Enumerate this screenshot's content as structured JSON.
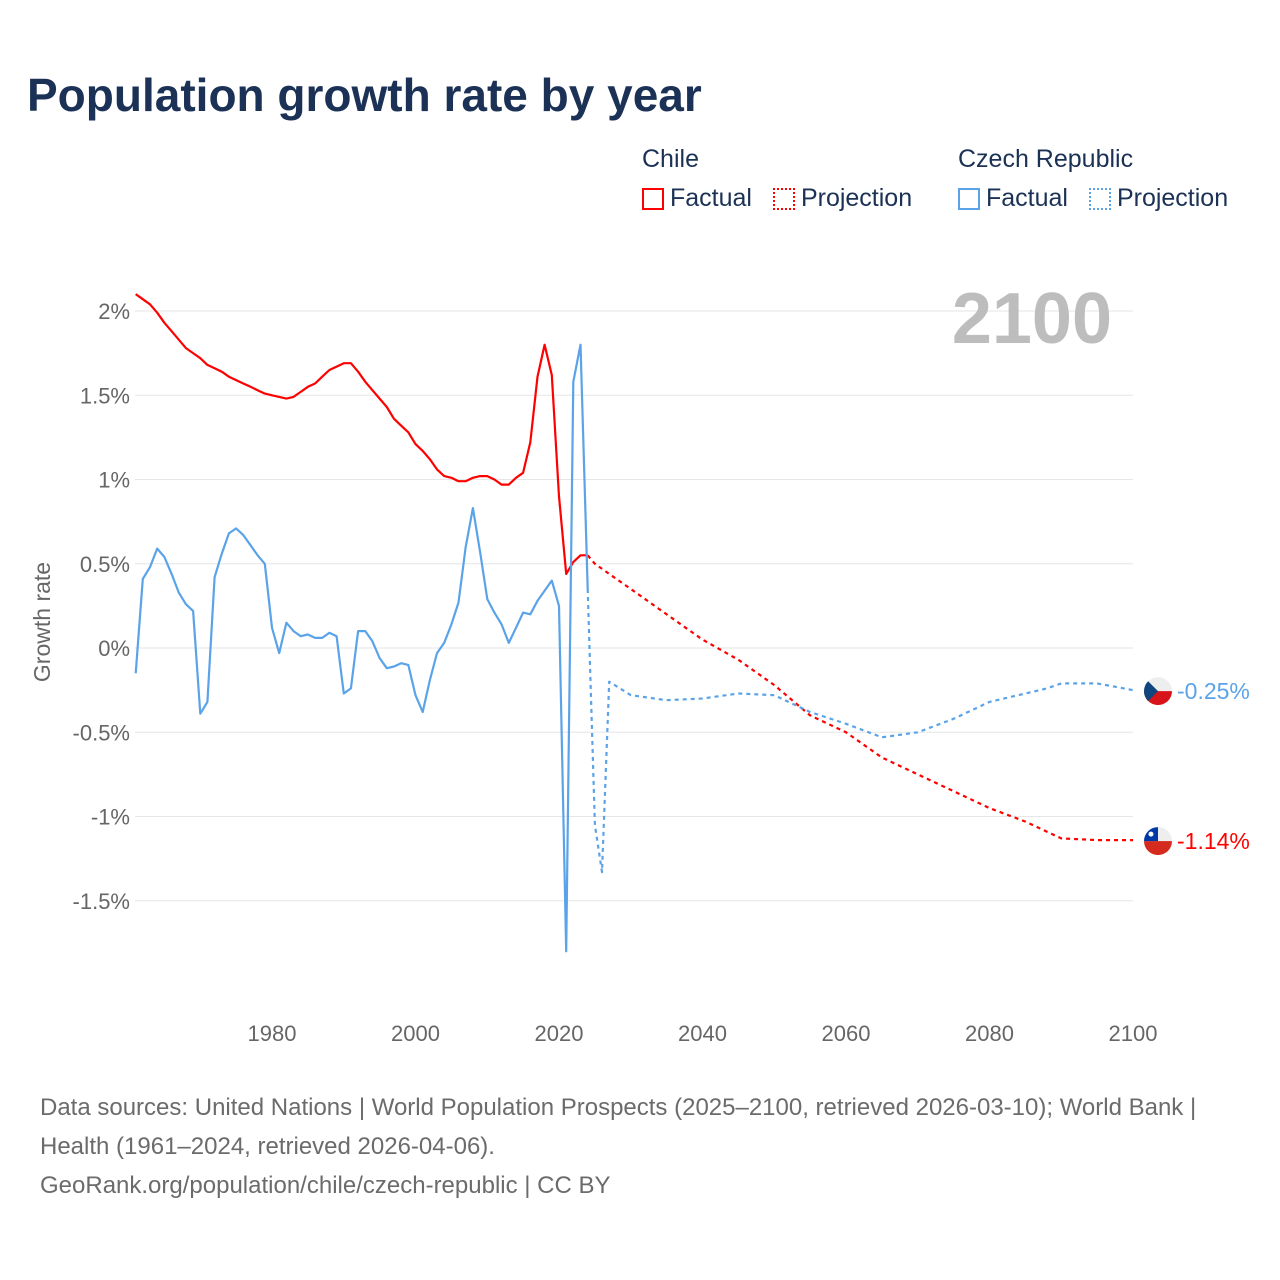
{
  "title": "Population growth rate by year",
  "legend": {
    "groups": [
      {
        "name": "Chile",
        "factual": "Factual",
        "projection": "Projection",
        "color": "#ff0000"
      },
      {
        "name": "Czech Republic",
        "factual": "Factual",
        "projection": "Projection",
        "color": "#5ba3e8"
      }
    ]
  },
  "year_label": "2100",
  "end_labels": {
    "chile": "-1.14%",
    "czech": "-0.25%"
  },
  "footer": {
    "line1": "Data sources: United Nations | World Population Prospects (2025–2100, retrieved 2026-03-10); World Bank | Health (1961–2024, retrieved 2026-04-06).",
    "line2": "GeoRank.org/population/chile/czech-republic | CC BY"
  },
  "chart_data": {
    "type": "line",
    "title": "Population growth rate by year",
    "ylabel": "Growth rate",
    "xlabel": "",
    "xlim": [
      1961,
      2100
    ],
    "ylim": [
      -1.9,
      2.2
    ],
    "xticks": [
      1980,
      2000,
      2020,
      2040,
      2060,
      2080,
      2100
    ],
    "yticks": [
      {
        "v": 2,
        "label": "2%"
      },
      {
        "v": 1.5,
        "label": "1.5%"
      },
      {
        "v": 1,
        "label": "1%"
      },
      {
        "v": 0.5,
        "label": "0.5%"
      },
      {
        "v": 0,
        "label": "0%"
      },
      {
        "v": -0.5,
        "label": "-0.5%"
      },
      {
        "v": -1,
        "label": "-1%"
      },
      {
        "v": -1.5,
        "label": "-1.5%"
      }
    ],
    "grid": true,
    "series": [
      {
        "name": "Chile Factual",
        "color": "#ff0000",
        "dashed": false,
        "x": [
          1961,
          1962,
          1963,
          1964,
          1965,
          1966,
          1967,
          1968,
          1969,
          1970,
          1971,
          1972,
          1973,
          1974,
          1975,
          1976,
          1977,
          1978,
          1979,
          1980,
          1981,
          1982,
          1983,
          1984,
          1985,
          1986,
          1987,
          1988,
          1989,
          1990,
          1991,
          1992,
          1993,
          1994,
          1995,
          1996,
          1997,
          1998,
          1999,
          2000,
          2001,
          2002,
          2003,
          2004,
          2005,
          2006,
          2007,
          2008,
          2009,
          2010,
          2011,
          2012,
          2013,
          2014,
          2015,
          2016,
          2017,
          2018,
          2019,
          2020,
          2021,
          2022,
          2023,
          2024
        ],
        "y": [
          2.1,
          2.07,
          2.04,
          1.99,
          1.93,
          1.88,
          1.83,
          1.78,
          1.75,
          1.72,
          1.68,
          1.66,
          1.64,
          1.61,
          1.59,
          1.57,
          1.55,
          1.53,
          1.51,
          1.5,
          1.49,
          1.48,
          1.49,
          1.52,
          1.55,
          1.57,
          1.61,
          1.65,
          1.67,
          1.69,
          1.69,
          1.64,
          1.58,
          1.53,
          1.48,
          1.43,
          1.36,
          1.32,
          1.28,
          1.21,
          1.17,
          1.12,
          1.06,
          1.02,
          1.01,
          0.99,
          0.99,
          1.01,
          1.02,
          1.02,
          1.0,
          0.97,
          0.97,
          1.01,
          1.04,
          1.22,
          1.61,
          1.8,
          1.62,
          0.9,
          0.44,
          0.51,
          0.55,
          0.55
        ]
      },
      {
        "name": "Chile Projection",
        "color": "#ff0000",
        "dashed": true,
        "x": [
          2024,
          2025,
          2027,
          2030,
          2035,
          2040,
          2045,
          2050,
          2055,
          2060,
          2065,
          2070,
          2075,
          2080,
          2085,
          2090,
          2095,
          2100
        ],
        "y": [
          0.55,
          0.5,
          0.44,
          0.35,
          0.2,
          0.05,
          -0.07,
          -0.22,
          -0.4,
          -0.5,
          -0.65,
          -0.75,
          -0.85,
          -0.95,
          -1.03,
          -1.13,
          -1.14,
          -1.14
        ]
      },
      {
        "name": "Czech Republic Factual",
        "color": "#5ba3e8",
        "dashed": false,
        "x": [
          1961,
          1962,
          1963,
          1964,
          1965,
          1966,
          1967,
          1968,
          1969,
          1970,
          1971,
          1972,
          1973,
          1974,
          1975,
          1976,
          1977,
          1978,
          1979,
          1980,
          1981,
          1982,
          1983,
          1984,
          1985,
          1986,
          1987,
          1988,
          1989,
          1990,
          1991,
          1992,
          1993,
          1994,
          1995,
          1996,
          1997,
          1998,
          1999,
          2000,
          2001,
          2002,
          2003,
          2004,
          2005,
          2006,
          2007,
          2008,
          2009,
          2010,
          2011,
          2012,
          2013,
          2014,
          2015,
          2016,
          2017,
          2018,
          2019,
          2020,
          2021,
          2022,
          2023,
          2024
        ],
        "y": [
          -0.15,
          0.41,
          0.48,
          0.59,
          0.54,
          0.44,
          0.33,
          0.26,
          0.22,
          -0.39,
          -0.32,
          0.42,
          0.56,
          0.68,
          0.71,
          0.67,
          0.61,
          0.55,
          0.5,
          0.12,
          -0.03,
          0.15,
          0.1,
          0.07,
          0.08,
          0.06,
          0.06,
          0.09,
          0.07,
          -0.27,
          -0.24,
          0.1,
          0.1,
          0.04,
          -0.06,
          -0.12,
          -0.11,
          -0.09,
          -0.1,
          -0.28,
          -0.38,
          -0.19,
          -0.03,
          0.03,
          0.14,
          0.27,
          0.6,
          0.83,
          0.57,
          0.29,
          0.21,
          0.14,
          0.03,
          0.12,
          0.21,
          0.2,
          0.28,
          0.34,
          0.4,
          0.25,
          -1.8,
          1.58,
          1.8,
          0.35
        ]
      },
      {
        "name": "Czech Republic Projection",
        "color": "#5ba3e8",
        "dashed": true,
        "x": [
          2024,
          2025,
          2026,
          2027,
          2030,
          2035,
          2040,
          2045,
          2050,
          2055,
          2060,
          2065,
          2070,
          2075,
          2080,
          2085,
          2088,
          2090,
          2095,
          2100
        ],
        "y": [
          0.35,
          -1.05,
          -1.33,
          -0.2,
          -0.28,
          -0.31,
          -0.3,
          -0.27,
          -0.28,
          -0.38,
          -0.45,
          -0.53,
          -0.5,
          -0.42,
          -0.32,
          -0.27,
          -0.24,
          -0.21,
          -0.21,
          -0.25
        ]
      }
    ]
  }
}
